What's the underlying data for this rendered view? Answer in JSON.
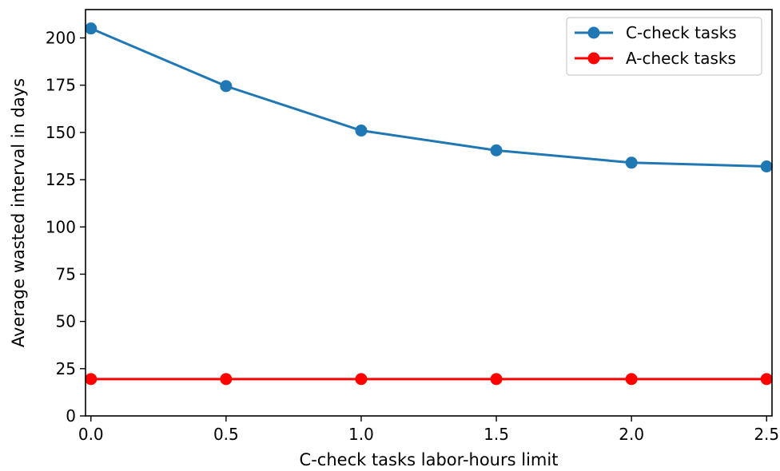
{
  "chart_data": {
    "type": "line",
    "title": "",
    "xlabel": "C-check tasks labor-hours limit",
    "ylabel": "Average wasted interval in days",
    "x": [
      0.0,
      0.5,
      1.0,
      1.5,
      2.0,
      2.5
    ],
    "xlim": [
      -0.02,
      2.52
    ],
    "ylim": [
      0,
      215
    ],
    "xticks": [
      0.0,
      0.5,
      1.0,
      1.5,
      2.0,
      2.5
    ],
    "xtick_labels": [
      "0.0",
      "0.5",
      "1.0",
      "1.5",
      "2.0",
      "2.5"
    ],
    "yticks": [
      0,
      25,
      50,
      75,
      100,
      125,
      150,
      175,
      200
    ],
    "ytick_labels": [
      "0",
      "25",
      "50",
      "75",
      "100",
      "125",
      "150",
      "175",
      "200"
    ],
    "grid": false,
    "legend_position": "top-right",
    "series": [
      {
        "name": "C-check tasks",
        "color": "#1f77b4",
        "marker": "circle",
        "values": [
          205,
          174.5,
          151,
          140.5,
          134,
          132
        ]
      },
      {
        "name": "A-check tasks",
        "color": "#ff0000",
        "marker": "circle",
        "values": [
          19.5,
          19.5,
          19.5,
          19.5,
          19.5,
          19.5
        ]
      }
    ]
  }
}
